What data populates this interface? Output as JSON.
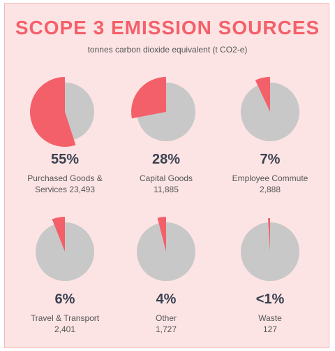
{
  "header": {
    "title": "SCOPE 3  EMISSION SOURCES",
    "subtitle": "tonnes carbon dioxide equivalent (t CO2-e)"
  },
  "colors": {
    "panel_bg": "#fde4e4",
    "accent": "#f4606a",
    "pie_base": "#c8c8c8",
    "text_dark": "#3a4150"
  },
  "chart_data": {
    "type": "pie",
    "title": "SCOPE 3  EMISSION SOURCES",
    "subtitle": "tonnes carbon dioxide equivalent (t CO2-e)",
    "items": [
      {
        "category": "Purchased Goods & Services",
        "percent_label": "55%",
        "share": 0.55,
        "tonnes": 23493,
        "label_lines": [
          "Purchased Goods &",
          "Services 23,493"
        ]
      },
      {
        "category": "Capital Goods",
        "percent_label": "28%",
        "share": 0.28,
        "tonnes": 11885,
        "label_lines": [
          "Capital Goods",
          "11,885"
        ]
      },
      {
        "category": "Employee Commute",
        "percent_label": "7%",
        "share": 0.07,
        "tonnes": 2888,
        "label_lines": [
          "Employee Commute",
          "2,888"
        ]
      },
      {
        "category": "Travel & Transport",
        "percent_label": "6%",
        "share": 0.06,
        "tonnes": 2401,
        "label_lines": [
          "Travel & Transport",
          "2,401"
        ]
      },
      {
        "category": "Other",
        "percent_label": "4%",
        "share": 0.04,
        "tonnes": 1727,
        "label_lines": [
          "Other",
          "1,727"
        ]
      },
      {
        "category": "Waste",
        "percent_label": "<1%",
        "share": 0.01,
        "tonnes": 127,
        "label_lines": [
          "Waste",
          "127"
        ]
      }
    ]
  }
}
